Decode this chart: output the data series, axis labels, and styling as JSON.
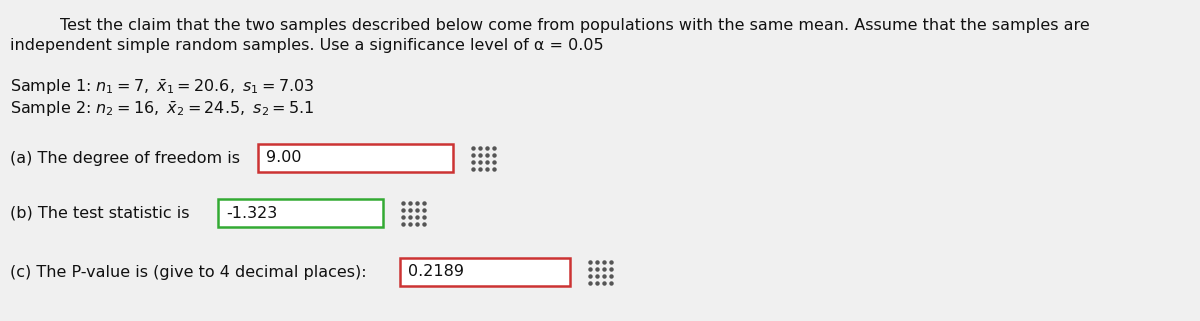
{
  "bg_color": "#f0f0f0",
  "text_color": "#111111",
  "title_line1": "Test the claim that the two samples described below come from populations with the same mean. Assume that the samples are",
  "title_line2": "independent simple random samples. Use a significance level of α = 0.05",
  "sample1_label": "Sample 1: ",
  "sample1_math": "$n_1 = 7,\\ \\bar{x}_1 = 20.6,\\ s_1 = 7.03$",
  "sample2_label": "Sample 2: ",
  "sample2_math": "$n_2 = 16,\\ \\bar{x}_2 = 24.5,\\ s_2 = 5.1$",
  "part_a_label": "(a) The degree of freedom is",
  "part_a_value": "9.00",
  "part_a_box_edge": "#cc3333",
  "part_b_label": "(b) The test statistic is",
  "part_b_value": "-1.323",
  "part_b_box_edge": "#33aa33",
  "part_c_label": "(c) The P-value is (give to 4 decimal places):",
  "part_c_value": "0.2189",
  "part_c_box_edge": "#cc3333",
  "grid_icon_color": "#555555",
  "font_size": 11.5
}
